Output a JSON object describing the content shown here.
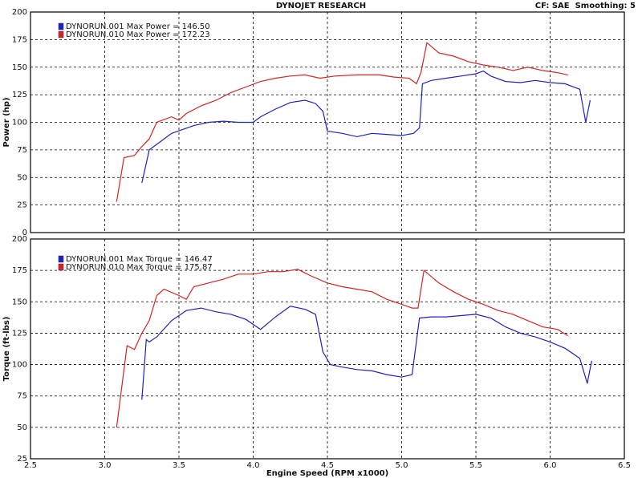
{
  "header": {
    "title": "DYNOJET RESEARCH",
    "settings": "CF: SAE  Smoothing: 5"
  },
  "chart_data": [
    {
      "type": "line",
      "y_label": "Power (hp)",
      "xlim": [
        2.5,
        6.5
      ],
      "xticks": [
        2.5,
        {
          "value": 3,
          "label": "3.0"
        },
        3.5,
        {
          "value": 4,
          "label": "4.0"
        },
        4.5,
        {
          "value": 5,
          "label": "5.0"
        },
        5.5,
        {
          "value": 6,
          "label": "6.0"
        },
        6.5
      ],
      "ylim": [
        0,
        200
      ],
      "yticks": [
        0,
        25,
        50,
        75,
        100,
        125,
        150,
        175,
        200
      ],
      "grid": true,
      "series": [
        {
          "name": "DYNORUN.001 Max Power = 146.50",
          "color": "#1f1fd0",
          "x": [
            3.25,
            3.3,
            3.35,
            3.45,
            3.6,
            3.7,
            3.8,
            3.9,
            4.0,
            4.05,
            4.15,
            4.25,
            4.35,
            4.42,
            4.47,
            4.5,
            4.6,
            4.7,
            4.8,
            4.9,
            5.0,
            5.08,
            5.12,
            5.14,
            5.2,
            5.3,
            5.4,
            5.5,
            5.55,
            5.6,
            5.7,
            5.8,
            5.9,
            6.0,
            6.1,
            6.2,
            6.24,
            6.27
          ],
          "values": [
            45,
            75,
            80,
            90,
            97,
            100,
            101,
            100,
            100,
            105,
            112,
            118,
            120,
            117,
            110,
            92,
            90,
            87,
            90,
            89,
            88,
            90,
            95,
            135,
            138,
            140,
            142,
            144,
            146.5,
            142,
            137,
            136,
            138,
            136,
            135,
            130,
            100,
            120
          ]
        },
        {
          "name": "DYNORUN.010 Max Power = 172.23",
          "color": "#e02020",
          "x": [
            3.08,
            3.13,
            3.2,
            3.25,
            3.3,
            3.35,
            3.45,
            3.5,
            3.55,
            3.65,
            3.75,
            3.85,
            3.95,
            4.05,
            4.15,
            4.25,
            4.35,
            4.45,
            4.55,
            4.7,
            4.85,
            4.95,
            5.05,
            5.1,
            5.13,
            5.17,
            5.25,
            5.35,
            5.45,
            5.55,
            5.65,
            5.75,
            5.85,
            5.95,
            6.05,
            6.12
          ],
          "values": [
            28,
            68,
            70,
            78,
            85,
            100,
            105,
            102,
            108,
            115,
            120,
            127,
            132,
            137,
            140,
            142,
            143,
            140,
            142,
            143,
            143,
            141,
            140,
            135,
            145,
            172.23,
            163,
            160,
            155,
            152,
            150,
            147,
            150,
            147,
            145,
            143
          ]
        }
      ]
    },
    {
      "type": "line",
      "y_label": "Torque (ft-lbs)",
      "x_label": "Engine Speed (RPM x1000)",
      "xlim": [
        2.5,
        6.5
      ],
      "xticks": [
        2.5,
        {
          "value": 3,
          "label": "3.0"
        },
        3.5,
        {
          "value": 4,
          "label": "4.0"
        },
        4.5,
        {
          "value": 5,
          "label": "5.0"
        },
        5.5,
        {
          "value": 6,
          "label": "6.0"
        },
        6.5
      ],
      "ylim": [
        25,
        200
      ],
      "yticks": [
        25,
        50,
        75,
        100,
        125,
        150,
        175,
        200
      ],
      "grid": true,
      "series": [
        {
          "name": "DYNORUN.001 Max Torque = 146.47",
          "color": "#1f1fd0",
          "x": [
            3.25,
            3.28,
            3.3,
            3.35,
            3.45,
            3.55,
            3.65,
            3.75,
            3.85,
            3.95,
            4.05,
            4.15,
            4.25,
            4.35,
            4.42,
            4.47,
            4.52,
            4.6,
            4.7,
            4.8,
            4.9,
            5.0,
            5.07,
            5.12,
            5.2,
            5.3,
            5.4,
            5.5,
            5.6,
            5.7,
            5.8,
            5.9,
            6.0,
            6.1,
            6.2,
            6.25,
            6.28
          ],
          "values": [
            72,
            120,
            118,
            122,
            135,
            143,
            145,
            142,
            140,
            136,
            128,
            138,
            146.47,
            144,
            140,
            110,
            100,
            98,
            96,
            95,
            92,
            90,
            92,
            137,
            138,
            138,
            139,
            140,
            137,
            130,
            125,
            122,
            118,
            113,
            105,
            85,
            103
          ]
        },
        {
          "name": "DYNORUN.010 Max Torque = 175.87",
          "color": "#e02020",
          "x": [
            3.08,
            3.15,
            3.2,
            3.25,
            3.3,
            3.35,
            3.4,
            3.5,
            3.55,
            3.6,
            3.7,
            3.8,
            3.9,
            4.0,
            4.1,
            4.2,
            4.3,
            4.4,
            4.5,
            4.6,
            4.7,
            4.8,
            4.9,
            5.0,
            5.07,
            5.11,
            5.15,
            5.25,
            5.35,
            5.45,
            5.55,
            5.65,
            5.75,
            5.85,
            5.95,
            6.05,
            6.12
          ],
          "values": [
            50,
            115,
            112,
            125,
            135,
            155,
            160,
            155,
            152,
            162,
            165,
            168,
            172,
            172,
            174,
            174,
            175.87,
            170,
            165,
            162,
            160,
            158,
            152,
            148,
            145,
            145,
            175,
            165,
            158,
            152,
            148,
            143,
            140,
            135,
            130,
            128,
            123
          ]
        }
      ]
    }
  ]
}
